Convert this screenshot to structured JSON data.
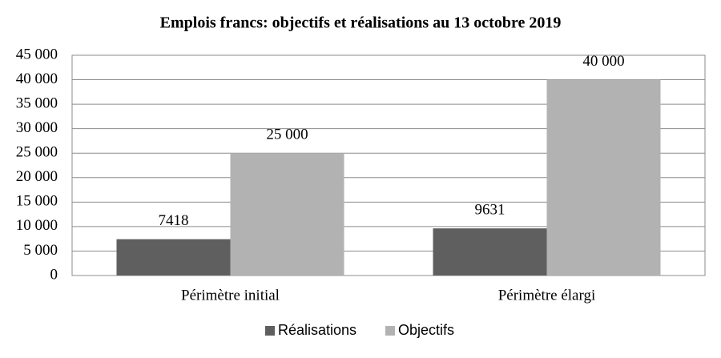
{
  "chart_data": {
    "type": "bar",
    "title": "Emplois francs: objectifs et réalisations au 13 octobre 2019",
    "categories": [
      "Périmètre initial",
      "Périmètre élargi"
    ],
    "series": [
      {
        "name": "Réalisations",
        "color": "#5f5f5f",
        "values": [
          7418,
          9631
        ]
      },
      {
        "name": "Objectifs",
        "color": "#b2b2b2",
        "values": [
          25000,
          40000
        ],
        "value_labels": [
          "25 000",
          "40 000"
        ]
      }
    ],
    "ylim": [
      0,
      45000
    ],
    "yticks": [
      0,
      {
        "value": 5000,
        "label": "5 000"
      },
      {
        "value": 10000,
        "label": "10 000"
      },
      {
        "value": 15000,
        "label": "15 000"
      },
      {
        "value": 20000,
        "label": "20 000"
      },
      {
        "value": 25000,
        "label": "25 000"
      },
      {
        "value": 30000,
        "label": "30 000"
      },
      {
        "value": 35000,
        "label": "35 000"
      },
      {
        "value": 40000,
        "label": "40 000"
      },
      {
        "value": 45000,
        "label": "45 000"
      }
    ],
    "grid": true,
    "legend": "bottom"
  }
}
